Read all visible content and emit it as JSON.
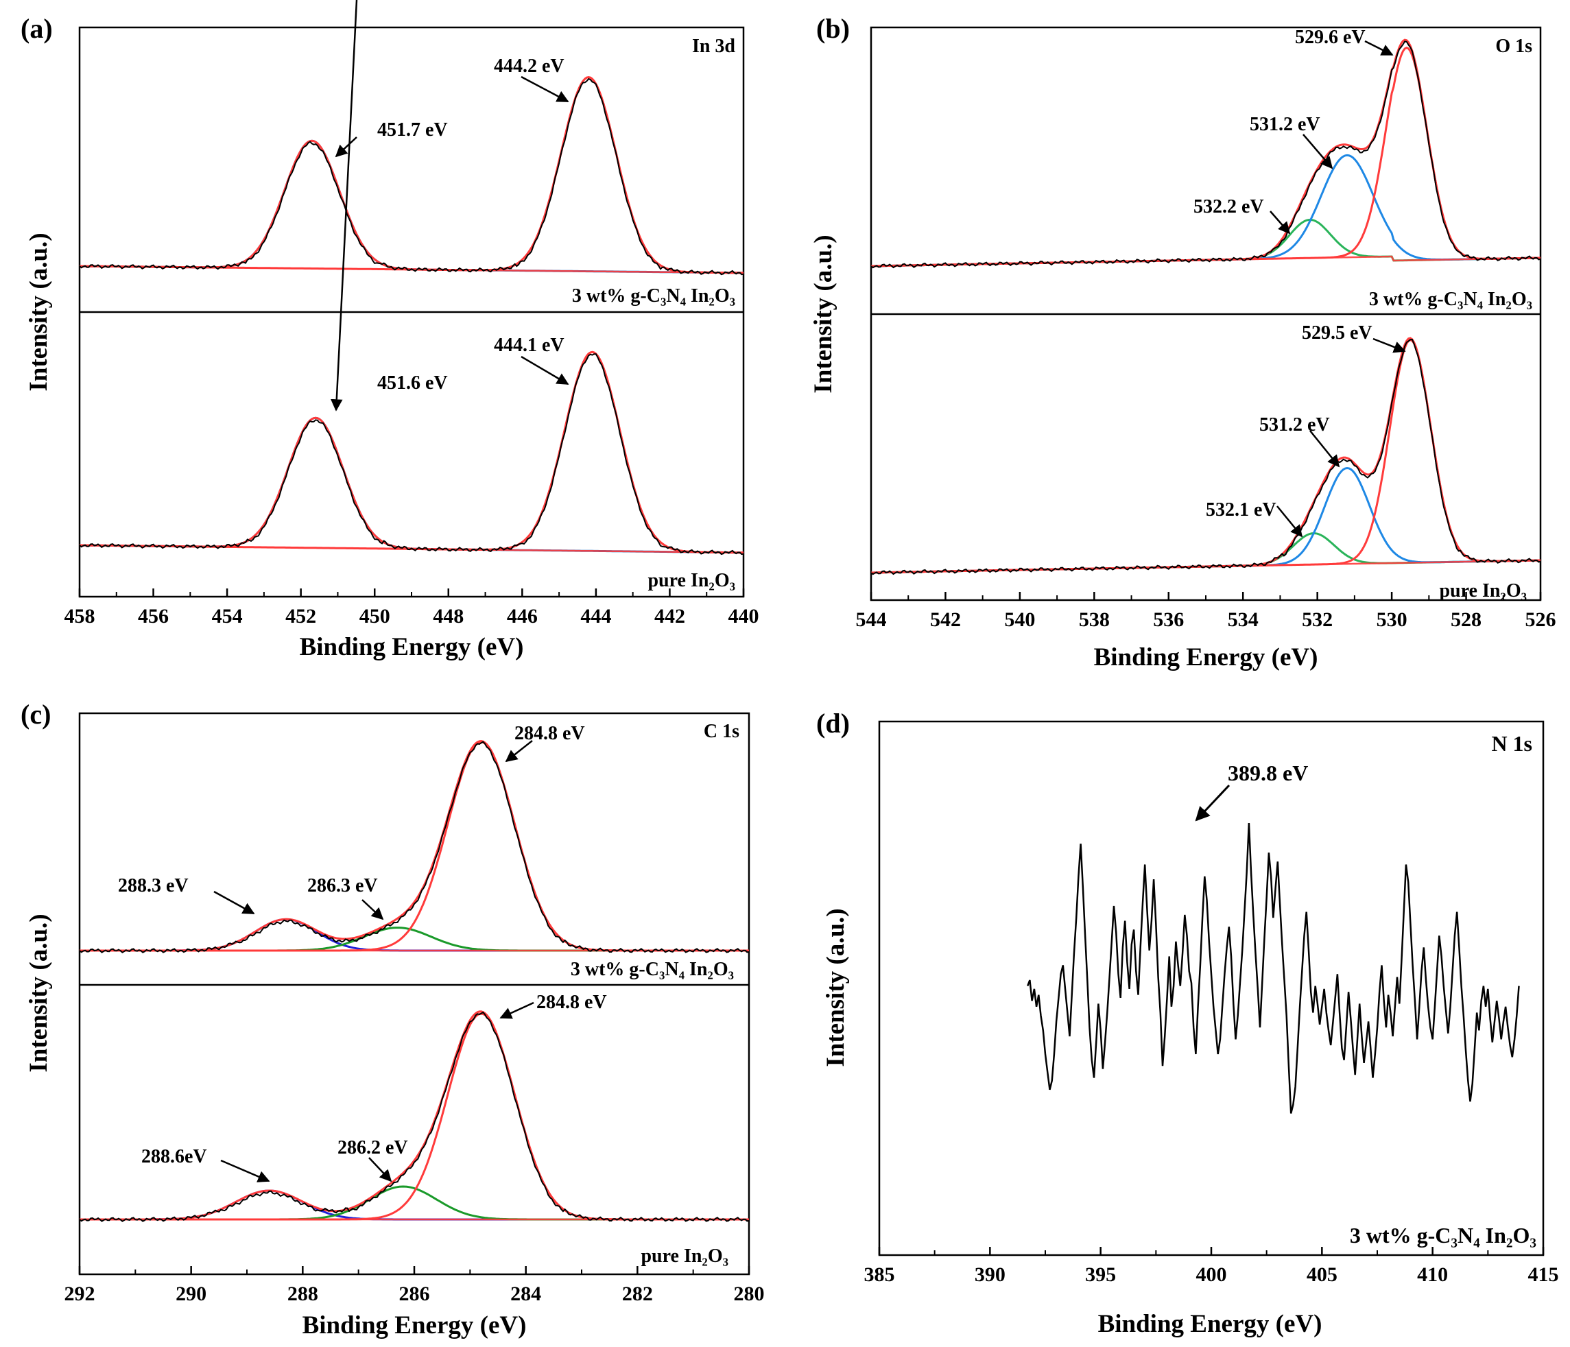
{
  "colors": {
    "envelope": "#000000",
    "fit_total": "#ff3b3b",
    "in3d_component": "#1e73c8",
    "o1s_532": "#2ab45a",
    "o1s_531": "#1e88e5",
    "o1s_529": "#ff3b3b",
    "c1s_288": "#2020d8",
    "c1s_286": "#1a9a2a",
    "c1s_284": "#ff3b3b",
    "n1s_line": "#000000"
  },
  "chart_data": [
    {
      "panel": "(a)",
      "type": "line",
      "title": "In 3d",
      "xlabel": "Binding Energy (eV)",
      "ylabel": "Intensity (a.u.)",
      "xlim": [
        458,
        440
      ],
      "x_reversed": true,
      "xticks": [
        "458",
        "456",
        "454",
        "452",
        "450",
        "448",
        "446",
        "444",
        "442",
        "440"
      ],
      "subpanels": [
        {
          "sample": "3 wt% g-C3N4 In2O3",
          "peaks": [
            {
              "center": 451.7,
              "height": 1.0,
              "sigma": 0.75,
              "label": "451.7 eV",
              "color_key": "in3d_component"
            },
            {
              "center": 444.2,
              "height": 1.52,
              "sigma": 0.75,
              "label": "444.2 eV",
              "color_key": "fit_total"
            }
          ]
        },
        {
          "sample": "pure In2O3",
          "peaks": [
            {
              "center": 451.6,
              "height": 1.0,
              "sigma": 0.75,
              "label": "451.6 eV",
              "color_key": "in3d_component"
            },
            {
              "center": 444.1,
              "height": 1.53,
              "sigma": 0.75,
              "label": "444.1 eV",
              "color_key": "fit_total"
            }
          ]
        }
      ]
    },
    {
      "panel": "(b)",
      "type": "line",
      "title": "O 1s",
      "xlabel": "Binding Energy (eV)",
      "ylabel": "Intensity (a.u.)",
      "xlim": [
        544,
        526
      ],
      "x_reversed": true,
      "xticks": [
        "544",
        "542",
        "540",
        "538",
        "536",
        "534",
        "532",
        "530",
        "528",
        "526"
      ],
      "subpanels": [
        {
          "sample": "3 wt% g-C3N4 In2O3",
          "peaks": [
            {
              "center": 532.2,
              "height": 0.18,
              "sigma": 0.55,
              "label": "532.2 eV",
              "color_key": "o1s_532"
            },
            {
              "center": 531.2,
              "height": 0.48,
              "sigma": 0.7,
              "label": "531.2 eV",
              "color_key": "o1s_531"
            },
            {
              "center": 529.6,
              "height": 1.0,
              "sigma": 0.55,
              "label": "529.6 eV",
              "color_key": "o1s_529"
            }
          ]
        },
        {
          "sample": "pure In2O3",
          "peaks": [
            {
              "center": 532.1,
              "height": 0.14,
              "sigma": 0.55,
              "label": "532.1 eV",
              "color_key": "o1s_532"
            },
            {
              "center": 531.2,
              "height": 0.43,
              "sigma": 0.6,
              "label": "531.2 eV",
              "color_key": "o1s_531"
            },
            {
              "center": 529.5,
              "height": 1.0,
              "sigma": 0.55,
              "label": "529.5 eV",
              "color_key": "o1s_529"
            }
          ]
        }
      ]
    },
    {
      "panel": "(c)",
      "type": "line",
      "title": "C 1s",
      "xlabel": "Binding Energy (eV)",
      "ylabel": "Intensity (a.u.)",
      "xlim": [
        292,
        280
      ],
      "x_reversed": true,
      "xticks": [
        "292",
        "290",
        "288",
        "286",
        "284",
        "282",
        "280"
      ],
      "subpanels": [
        {
          "sample": "3 wt% g-C3N4 In2O3",
          "peaks": [
            {
              "center": 288.3,
              "height": 0.15,
              "sigma": 0.55,
              "label": "288.3 eV",
              "color_key": "c1s_288"
            },
            {
              "center": 286.3,
              "height": 0.11,
              "sigma": 0.6,
              "label": "286.3 eV",
              "color_key": "c1s_286"
            },
            {
              "center": 284.8,
              "height": 1.0,
              "sigma": 0.6,
              "label": "284.8 eV",
              "color_key": "c1s_284"
            }
          ]
        },
        {
          "sample": "pure In2O3",
          "peaks": [
            {
              "center": 288.6,
              "height": 0.14,
              "sigma": 0.6,
              "label": "288.6eV",
              "color_key": "c1s_288"
            },
            {
              "center": 286.2,
              "height": 0.16,
              "sigma": 0.6,
              "label": "286.2 eV",
              "color_key": "c1s_286"
            },
            {
              "center": 284.8,
              "height": 1.0,
              "sigma": 0.6,
              "label": "284.8 eV",
              "color_key": "c1s_284"
            }
          ]
        }
      ]
    },
    {
      "panel": "(d)",
      "type": "line",
      "title": "N 1s",
      "xlabel": "Binding Energy (eV)",
      "ylabel": "Intensity (a.u.)",
      "xlim": [
        385,
        415
      ],
      "xticks": [
        "385",
        "390",
        "395",
        "400",
        "405",
        "410",
        "415"
      ],
      "sample": "3 wt% g-C3N4 In2O3",
      "annotation": {
        "label": "389.8 eV",
        "x": 398.8
      },
      "series": {
        "x_start": 391.7,
        "x_step": 0.1,
        "y": [
          0.45,
          0.47,
          0.4,
          0.44,
          0.38,
          0.42,
          0.35,
          0.3,
          0.22,
          0.16,
          0.1,
          0.13,
          0.22,
          0.33,
          0.41,
          0.49,
          0.52,
          0.44,
          0.36,
          0.28,
          0.42,
          0.56,
          0.68,
          0.82,
          0.93,
          0.78,
          0.62,
          0.47,
          0.31,
          0.2,
          0.14,
          0.26,
          0.39,
          0.3,
          0.17,
          0.26,
          0.36,
          0.48,
          0.6,
          0.72,
          0.63,
          0.49,
          0.41,
          0.58,
          0.67,
          0.53,
          0.44,
          0.59,
          0.64,
          0.5,
          0.42,
          0.58,
          0.73,
          0.86,
          0.71,
          0.57,
          0.67,
          0.81,
          0.66,
          0.48,
          0.36,
          0.18,
          0.28,
          0.41,
          0.55,
          0.38,
          0.45,
          0.6,
          0.52,
          0.45,
          0.56,
          0.69,
          0.62,
          0.5,
          0.46,
          0.31,
          0.22,
          0.38,
          0.52,
          0.68,
          0.82,
          0.74,
          0.6,
          0.49,
          0.38,
          0.3,
          0.22,
          0.27,
          0.38,
          0.49,
          0.58,
          0.65,
          0.55,
          0.39,
          0.27,
          0.35,
          0.46,
          0.57,
          0.7,
          0.83,
          1.0,
          0.83,
          0.69,
          0.56,
          0.44,
          0.31,
          0.46,
          0.61,
          0.75,
          0.9,
          0.82,
          0.68,
          0.78,
          0.87,
          0.73,
          0.59,
          0.47,
          0.35,
          0.18,
          0.02,
          0.05,
          0.11,
          0.24,
          0.38,
          0.5,
          0.62,
          0.7,
          0.57,
          0.43,
          0.36,
          0.45,
          0.39,
          0.32,
          0.38,
          0.44,
          0.36,
          0.3,
          0.25,
          0.33,
          0.41,
          0.49,
          0.36,
          0.24,
          0.2,
          0.31,
          0.43,
          0.34,
          0.24,
          0.15,
          0.27,
          0.39,
          0.28,
          0.19,
          0.26,
          0.33,
          0.24,
          0.14,
          0.22,
          0.31,
          0.43,
          0.52,
          0.4,
          0.31,
          0.42,
          0.36,
          0.28,
          0.38,
          0.48,
          0.39,
          0.54,
          0.7,
          0.86,
          0.8,
          0.66,
          0.52,
          0.4,
          0.27,
          0.38,
          0.5,
          0.58,
          0.47,
          0.38,
          0.31,
          0.27,
          0.38,
          0.5,
          0.62,
          0.55,
          0.45,
          0.37,
          0.29,
          0.38,
          0.5,
          0.62,
          0.7,
          0.58,
          0.45,
          0.35,
          0.23,
          0.13,
          0.06,
          0.12,
          0.24,
          0.36,
          0.3,
          0.4,
          0.45,
          0.38,
          0.44,
          0.34,
          0.26,
          0.33,
          0.4,
          0.34,
          0.27,
          0.33,
          0.38,
          0.31,
          0.25,
          0.21,
          0.27,
          0.35,
          0.45
        ]
      }
    }
  ],
  "panels_text": {
    "a": {
      "label": "(a)",
      "title": "In 3d",
      "ylabel": "Intensity (a.u.)",
      "xlabel": "Binding Energy (eV)",
      "top_sample": "3 wt% g-C₃N₄ In₂O₃",
      "bottom_sample": "pure In₂O₃",
      "top_ann": [
        "451.7 eV",
        "444.2 eV"
      ],
      "bottom_ann": [
        "451.6 eV",
        "444.1 eV"
      ]
    },
    "b": {
      "label": "(b)",
      "title": "O 1s",
      "ylabel": "Intensity (a.u.)",
      "xlabel": "Binding Energy (eV)",
      "top_sample": "3 wt% g-C₃N₄ In₂O₃",
      "bottom_sample": "pure In₂O₃",
      "top_ann": [
        "532.2 eV",
        "531.2 eV",
        "529.6 eV"
      ],
      "bottom_ann": [
        "532.1 eV",
        "531.2 eV",
        "529.5 eV"
      ]
    },
    "c": {
      "label": "(c)",
      "title": "C 1s",
      "ylabel": "Intensity (a.u.)",
      "xlabel": "Binding Energy (eV)",
      "top_sample": "3 wt% g-C₃N₄ In₂O₃",
      "bottom_sample": "pure In₂O₃",
      "top_ann": [
        "288.3 eV",
        "286.3 eV",
        "284.8 eV"
      ],
      "bottom_ann": [
        "288.6eV",
        "286.2 eV",
        "284.8 eV"
      ]
    },
    "d": {
      "label": "(d)",
      "title": "N 1s",
      "ylabel": "Intensity (a.u.)",
      "xlabel": "Binding Energy (eV)",
      "sample": "3 wt% g-C₃N₄ In₂O₃",
      "ann": "389.8 eV"
    }
  }
}
